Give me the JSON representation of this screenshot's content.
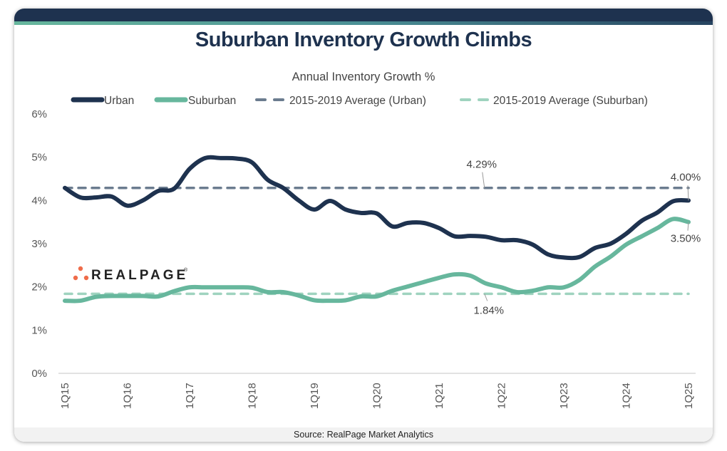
{
  "title": "Suburban Inventory Growth Climbs",
  "footer": "Source: RealPage Market Analytics",
  "logo": {
    "text": "REALPAGE",
    "trademark": "®",
    "dot_color": "#ef6c4a"
  },
  "colors": {
    "urban": "#1e324f",
    "suburban": "#67b79d",
    "urban_avg": "#6b7c8f",
    "suburban_avg": "#9fd3bf",
    "header": "#1e324f"
  },
  "chart_data": {
    "type": "line",
    "title": "Annual Inventory Growth %",
    "xlabel": "",
    "ylabel": "",
    "ylim": [
      0,
      6
    ],
    "yticks": [
      0,
      1,
      2,
      3,
      4,
      5,
      6
    ],
    "ytick_labels": [
      "0%",
      "1%",
      "2%",
      "3%",
      "4%",
      "5%",
      "6%"
    ],
    "grid": false,
    "legend_position": "top",
    "x": [
      "1Q15",
      "2Q15",
      "3Q15",
      "4Q15",
      "1Q16",
      "2Q16",
      "3Q16",
      "4Q16",
      "1Q17",
      "2Q17",
      "3Q17",
      "4Q17",
      "1Q18",
      "2Q18",
      "3Q18",
      "4Q18",
      "1Q19",
      "2Q19",
      "3Q19",
      "4Q19",
      "1Q20",
      "2Q20",
      "3Q20",
      "4Q20",
      "1Q21",
      "2Q21",
      "3Q21",
      "4Q21",
      "1Q22",
      "2Q22",
      "3Q22",
      "4Q22",
      "1Q23",
      "2Q23",
      "3Q23",
      "4Q23",
      "1Q24",
      "2Q24",
      "3Q24",
      "4Q24",
      "1Q25"
    ],
    "xtick_labels": [
      "1Q15",
      "1Q16",
      "1Q17",
      "1Q18",
      "1Q19",
      "1Q20",
      "1Q21",
      "1Q22",
      "1Q23",
      "1Q24",
      "1Q25"
    ],
    "series": [
      {
        "name": "Urban",
        "style": "solid",
        "values": [
          4.29,
          4.07,
          4.07,
          4.09,
          3.88,
          4.0,
          4.22,
          4.27,
          4.73,
          4.98,
          4.98,
          4.97,
          4.88,
          4.48,
          4.29,
          4.0,
          3.79,
          3.99,
          3.79,
          3.71,
          3.7,
          3.4,
          3.48,
          3.48,
          3.36,
          3.17,
          3.18,
          3.16,
          3.08,
          3.08,
          2.98,
          2.75,
          2.68,
          2.69,
          2.9,
          3.0,
          3.23,
          3.53,
          3.72,
          3.98,
          4.0
        ]
      },
      {
        "name": "Suburban",
        "style": "solid",
        "values": [
          1.68,
          1.68,
          1.77,
          1.79,
          1.79,
          1.79,
          1.78,
          1.9,
          1.99,
          1.99,
          1.99,
          1.99,
          1.98,
          1.88,
          1.88,
          1.8,
          1.69,
          1.68,
          1.69,
          1.78,
          1.78,
          1.91,
          2.01,
          2.11,
          2.21,
          2.29,
          2.26,
          2.08,
          1.99,
          1.88,
          1.91,
          1.99,
          1.99,
          2.16,
          2.47,
          2.7,
          2.98,
          3.17,
          3.36,
          3.57,
          3.5
        ]
      },
      {
        "name": "2015-2019 Average (Urban)",
        "style": "dashed",
        "constant": 4.29
      },
      {
        "name": "2015-2019 Average (Suburban)",
        "style": "dashed",
        "constant": 1.84
      }
    ],
    "annotations": [
      {
        "text": "4.29%",
        "series": "2015-2019 Average (Urban)",
        "at": "3Q21"
      },
      {
        "text": "1.84%",
        "series": "2015-2019 Average (Suburban)",
        "at": "3Q21"
      },
      {
        "text": "4.00%",
        "series": "Urban",
        "at": "1Q25"
      },
      {
        "text": "3.50%",
        "series": "Suburban",
        "at": "1Q25"
      }
    ]
  }
}
